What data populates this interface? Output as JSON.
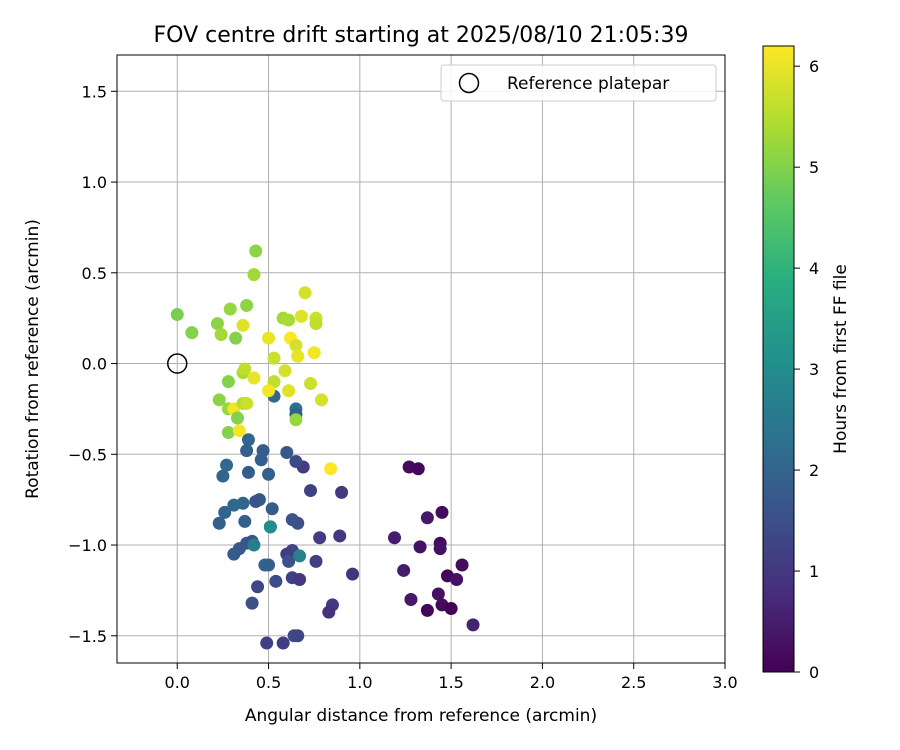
{
  "chart_data": {
    "type": "scatter",
    "title": "FOV centre drift starting at 2025/08/10 21:05:39",
    "xlabel": "Angular distance from reference (arcmin)",
    "ylabel": "Rotation from reference (arcmin)",
    "xlim": [
      -0.33,
      3.0
    ],
    "ylim": [
      -1.65,
      1.7
    ],
    "xticks": [
      "0.0",
      "0.5",
      "1.0",
      "1.5",
      "2.0",
      "2.5",
      "3.0"
    ],
    "xtick_values": [
      0.0,
      0.5,
      1.0,
      1.5,
      2.0,
      2.5,
      3.0
    ],
    "yticks": [
      "1.5",
      "1.0",
      "0.5",
      "0.0",
      "−0.5",
      "−1.0",
      "−1.5"
    ],
    "ytick_values": [
      1.5,
      1.0,
      0.5,
      0.0,
      -0.5,
      -1.0,
      -1.5
    ],
    "grid": true,
    "legend": {
      "position": "top-right",
      "entries": [
        "Reference platepar"
      ]
    },
    "reference_point": {
      "x": 0.0,
      "y": 0.0
    },
    "colorbar": {
      "label": "Hours from first FF file",
      "min": 0.0,
      "max": 6.2,
      "ticks": [
        "0",
        "1",
        "2",
        "3",
        "4",
        "5",
        "6"
      ],
      "tick_values": [
        0,
        1,
        2,
        3,
        4,
        5,
        6
      ],
      "colormap": "viridis"
    },
    "points": [
      {
        "x": 1.27,
        "y": -0.57,
        "h": 0.2
      },
      {
        "x": 1.32,
        "y": -0.58,
        "h": 0.1
      },
      {
        "x": 1.19,
        "y": -0.96,
        "h": 0.5
      },
      {
        "x": 1.37,
        "y": -0.85,
        "h": 0.4
      },
      {
        "x": 1.45,
        "y": -0.82,
        "h": 0.2
      },
      {
        "x": 1.33,
        "y": -1.01,
        "h": 0.3
      },
      {
        "x": 1.44,
        "y": -0.99,
        "h": 0.2
      },
      {
        "x": 1.44,
        "y": -1.02,
        "h": 0.3
      },
      {
        "x": 1.56,
        "y": -1.11,
        "h": 0.2
      },
      {
        "x": 1.48,
        "y": -1.17,
        "h": 0.1
      },
      {
        "x": 1.53,
        "y": -1.19,
        "h": 0.3
      },
      {
        "x": 1.24,
        "y": -1.14,
        "h": 0.5
      },
      {
        "x": 1.28,
        "y": -1.3,
        "h": 0.4
      },
      {
        "x": 1.43,
        "y": -1.27,
        "h": 0.3
      },
      {
        "x": 1.45,
        "y": -1.33,
        "h": 0.2
      },
      {
        "x": 1.37,
        "y": -1.36,
        "h": 0.1
      },
      {
        "x": 1.5,
        "y": -1.35,
        "h": 0.0
      },
      {
        "x": 1.62,
        "y": -1.44,
        "h": 0.6
      },
      {
        "x": 0.9,
        "y": -0.71,
        "h": 1.0
      },
      {
        "x": 0.73,
        "y": -0.7,
        "h": 1.2
      },
      {
        "x": 0.69,
        "y": -0.57,
        "h": 1.1
      },
      {
        "x": 0.65,
        "y": -0.54,
        "h": 1.4
      },
      {
        "x": 0.78,
        "y": -0.96,
        "h": 1.1
      },
      {
        "x": 0.89,
        "y": -0.95,
        "h": 1.0
      },
      {
        "x": 0.96,
        "y": -1.16,
        "h": 0.9
      },
      {
        "x": 0.76,
        "y": -1.09,
        "h": 1.2
      },
      {
        "x": 0.85,
        "y": -1.33,
        "h": 1.0
      },
      {
        "x": 0.83,
        "y": -1.37,
        "h": 0.9
      },
      {
        "x": 0.63,
        "y": -1.03,
        "h": 1.3
      },
      {
        "x": 0.6,
        "y": -1.05,
        "h": 1.1
      },
      {
        "x": 0.61,
        "y": -1.09,
        "h": 1.5
      },
      {
        "x": 0.63,
        "y": -1.18,
        "h": 1.2
      },
      {
        "x": 0.67,
        "y": -1.19,
        "h": 1.0
      },
      {
        "x": 0.54,
        "y": -1.2,
        "h": 1.4
      },
      {
        "x": 0.44,
        "y": -1.23,
        "h": 1.3
      },
      {
        "x": 0.41,
        "y": -1.32,
        "h": 1.5
      },
      {
        "x": 0.49,
        "y": -1.54,
        "h": 1.2
      },
      {
        "x": 0.58,
        "y": -1.54,
        "h": 1.1
      },
      {
        "x": 0.64,
        "y": -1.5,
        "h": 1.4
      },
      {
        "x": 0.66,
        "y": -1.5,
        "h": 1.3
      },
      {
        "x": 0.65,
        "y": -0.25,
        "h": 2.3
      },
      {
        "x": 0.53,
        "y": -0.18,
        "h": 2.1
      },
      {
        "x": 0.39,
        "y": -0.42,
        "h": 2.0
      },
      {
        "x": 0.47,
        "y": -0.48,
        "h": 1.8
      },
      {
        "x": 0.38,
        "y": -0.48,
        "h": 1.9
      },
      {
        "x": 0.46,
        "y": -0.53,
        "h": 1.9
      },
      {
        "x": 0.6,
        "y": -0.49,
        "h": 1.7
      },
      {
        "x": 0.27,
        "y": -0.56,
        "h": 2.1
      },
      {
        "x": 0.25,
        "y": -0.62,
        "h": 2.0
      },
      {
        "x": 0.39,
        "y": -0.6,
        "h": 1.8
      },
      {
        "x": 0.5,
        "y": -0.61,
        "h": 1.9
      },
      {
        "x": 0.45,
        "y": -0.75,
        "h": 1.7
      },
      {
        "x": 0.43,
        "y": -0.76,
        "h": 1.6
      },
      {
        "x": 0.36,
        "y": -0.77,
        "h": 2.0
      },
      {
        "x": 0.31,
        "y": -0.78,
        "h": 2.1
      },
      {
        "x": 0.26,
        "y": -0.82,
        "h": 2.0
      },
      {
        "x": 0.23,
        "y": -0.88,
        "h": 1.9
      },
      {
        "x": 0.37,
        "y": -0.87,
        "h": 1.9
      },
      {
        "x": 0.52,
        "y": -0.8,
        "h": 1.8
      },
      {
        "x": 0.63,
        "y": -0.86,
        "h": 1.6
      },
      {
        "x": 0.66,
        "y": -0.88,
        "h": 1.5
      },
      {
        "x": 0.51,
        "y": -0.9,
        "h": 2.4
      },
      {
        "x": 0.38,
        "y": -0.99,
        "h": 1.7
      },
      {
        "x": 0.41,
        "y": -0.98,
        "h": 1.6
      },
      {
        "x": 0.42,
        "y": -1.0,
        "h": 2.6
      },
      {
        "x": 0.34,
        "y": -1.02,
        "h": 1.7
      },
      {
        "x": 0.31,
        "y": -1.05,
        "h": 1.8
      },
      {
        "x": 0.48,
        "y": -1.11,
        "h": 2.0
      },
      {
        "x": 0.5,
        "y": -1.11,
        "h": 1.9
      },
      {
        "x": 0.67,
        "y": -1.06,
        "h": 2.7
      },
      {
        "x": 0.51,
        "y": -0.9,
        "h": 3.0
      },
      {
        "x": 0.65,
        "y": -0.28,
        "h": 1.9
      },
      {
        "x": 0.0,
        "y": 0.27,
        "h": 4.9
      },
      {
        "x": 0.08,
        "y": 0.17,
        "h": 5.0
      },
      {
        "x": 0.22,
        "y": 0.22,
        "h": 5.1
      },
      {
        "x": 0.24,
        "y": 0.16,
        "h": 5.3
      },
      {
        "x": 0.29,
        "y": 0.3,
        "h": 5.2
      },
      {
        "x": 0.32,
        "y": 0.14,
        "h": 5.0
      },
      {
        "x": 0.38,
        "y": 0.32,
        "h": 5.1
      },
      {
        "x": 0.36,
        "y": 0.21,
        "h": 5.9
      },
      {
        "x": 0.43,
        "y": 0.62,
        "h": 5.1
      },
      {
        "x": 0.42,
        "y": 0.49,
        "h": 5.3
      },
      {
        "x": 0.58,
        "y": 0.25,
        "h": 5.3
      },
      {
        "x": 0.61,
        "y": 0.24,
        "h": 5.4
      },
      {
        "x": 0.5,
        "y": 0.14,
        "h": 6.0
      },
      {
        "x": 0.62,
        "y": 0.14,
        "h": 6.2
      },
      {
        "x": 0.65,
        "y": 0.1,
        "h": 5.8
      },
      {
        "x": 0.66,
        "y": 0.04,
        "h": 6.0
      },
      {
        "x": 0.68,
        "y": 0.26,
        "h": 5.9
      },
      {
        "x": 0.7,
        "y": 0.39,
        "h": 5.8
      },
      {
        "x": 0.76,
        "y": 0.25,
        "h": 5.7
      },
      {
        "x": 0.76,
        "y": 0.22,
        "h": 5.6
      },
      {
        "x": 0.75,
        "y": 0.06,
        "h": 6.1
      },
      {
        "x": 0.53,
        "y": 0.03,
        "h": 5.7
      },
      {
        "x": 0.59,
        "y": -0.04,
        "h": 5.8
      },
      {
        "x": 0.53,
        "y": -0.1,
        "h": 5.6
      },
      {
        "x": 0.61,
        "y": -0.15,
        "h": 5.9
      },
      {
        "x": 0.5,
        "y": -0.15,
        "h": 6.1
      },
      {
        "x": 0.73,
        "y": -0.11,
        "h": 5.7
      },
      {
        "x": 0.79,
        "y": -0.2,
        "h": 5.8
      },
      {
        "x": 0.28,
        "y": -0.1,
        "h": 5.0
      },
      {
        "x": 0.23,
        "y": -0.2,
        "h": 5.1
      },
      {
        "x": 0.28,
        "y": -0.25,
        "h": 5.2
      },
      {
        "x": 0.31,
        "y": -0.25,
        "h": 6.1
      },
      {
        "x": 0.33,
        "y": -0.3,
        "h": 5.0
      },
      {
        "x": 0.36,
        "y": -0.22,
        "h": 5.5
      },
      {
        "x": 0.38,
        "y": -0.22,
        "h": 5.7
      },
      {
        "x": 0.36,
        "y": -0.05,
        "h": 5.4
      },
      {
        "x": 0.37,
        "y": -0.03,
        "h": 5.6
      },
      {
        "x": 0.42,
        "y": -0.08,
        "h": 6.0
      },
      {
        "x": 0.28,
        "y": -0.38,
        "h": 5.0
      },
      {
        "x": 0.34,
        "y": -0.37,
        "h": 6.1
      },
      {
        "x": 0.65,
        "y": -0.31,
        "h": 5.2
      },
      {
        "x": 0.84,
        "y": -0.58,
        "h": 6.2
      }
    ]
  }
}
